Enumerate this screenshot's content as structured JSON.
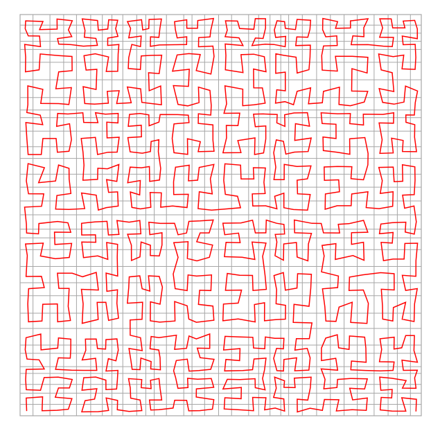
{
  "figure": {
    "grid": {
      "visible": true,
      "line_color": "#a6a6a6",
      "irregular_spacing": true
    },
    "curve": {
      "color": "#ff0000",
      "kind": "space-filling-curve",
      "closed": false
    }
  }
}
